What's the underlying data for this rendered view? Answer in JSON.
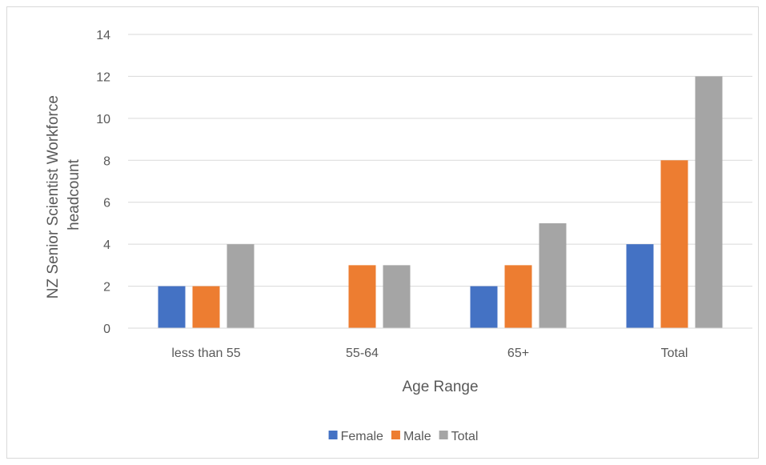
{
  "chart_data": {
    "type": "bar",
    "title": "",
    "xlabel": "Age Range",
    "ylabel_lines": [
      "NZ Senior Scientist Workforce",
      "headcount"
    ],
    "categories": [
      "less than 55",
      "55-64",
      "65+",
      "Total"
    ],
    "series": [
      {
        "name": "Female",
        "color": "#4472c4",
        "values": [
          2,
          0,
          2,
          4
        ]
      },
      {
        "name": "Male",
        "color": "#ed7d31",
        "values": [
          2,
          3,
          3,
          8
        ]
      },
      {
        "name": "Total",
        "color": "#a5a5a5",
        "values": [
          4,
          3,
          5,
          12
        ]
      }
    ],
    "ylim": [
      0,
      14
    ],
    "yticks": [
      0,
      2,
      4,
      6,
      8,
      10,
      12,
      14
    ],
    "grid": true,
    "legend_position": "bottom"
  }
}
